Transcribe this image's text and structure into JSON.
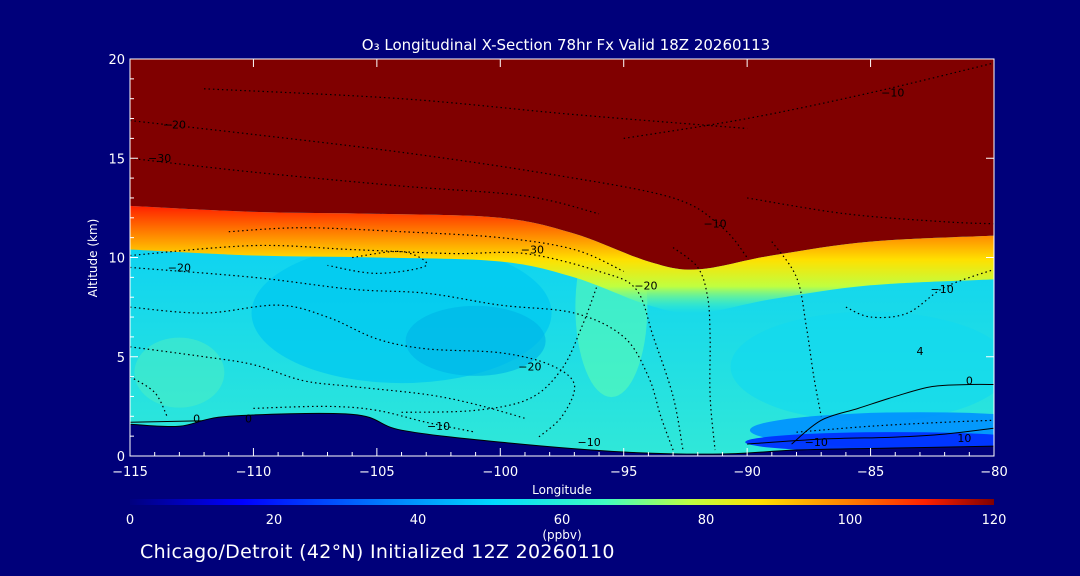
{
  "chart_data": {
    "type": "heatmap",
    "title": "O₃ Longitudinal X-Section 78hr  Fx Valid 18Z 20260113",
    "xlabel": "Longitude",
    "ylabel": "Altitude (km)",
    "xlim": [
      -115,
      -80
    ],
    "ylim": [
      0,
      20
    ],
    "x_ticks": [
      -115,
      -110,
      -105,
      -100,
      -95,
      -90,
      -85,
      -80
    ],
    "x_tick_labels": [
      "−115",
      "−110",
      "−105",
      "−100",
      "−95",
      "−90",
      "−85",
      "−80"
    ],
    "y_ticks": [
      0,
      5,
      10,
      15,
      20
    ],
    "y_tick_labels": [
      "0",
      "5",
      "10",
      "15",
      "20"
    ],
    "colorbar": {
      "label": "(ppbv)",
      "range": [
        0,
        120
      ],
      "ticks": [
        0,
        20,
        40,
        60,
        80,
        100,
        120
      ],
      "tick_labels": [
        "0",
        "20",
        "40",
        "60",
        "80",
        "100",
        "120"
      ],
      "colors": [
        "#00007f",
        "#0000ff",
        "#0080ff",
        "#00d8ff",
        "#40ffc0",
        "#c0ff40",
        "#ffe000",
        "#ff8000",
        "#ff2000",
        "#7f0000"
      ]
    },
    "stratosphere_boundary_km": [
      {
        "lon": -115,
        "alt": 12.6
      },
      {
        "lon": -110,
        "alt": 12.3
      },
      {
        "lon": -105,
        "alt": 12.2
      },
      {
        "lon": -100,
        "alt": 12.0
      },
      {
        "lon": -97,
        "alt": 11.2
      },
      {
        "lon": -94,
        "alt": 9.8
      },
      {
        "lon": -92,
        "alt": 9.4
      },
      {
        "lon": -89,
        "alt": 10.1
      },
      {
        "lon": -85,
        "alt": 10.8
      },
      {
        "lon": -80,
        "alt": 11.1
      }
    ],
    "terrain_km": [
      {
        "lon": -115,
        "alt": 1.6
      },
      {
        "lon": -113,
        "alt": 1.5
      },
      {
        "lon": -111,
        "alt": 2.0
      },
      {
        "lon": -106,
        "alt": 2.1
      },
      {
        "lon": -104,
        "alt": 1.3
      },
      {
        "lon": -100,
        "alt": 0.7
      },
      {
        "lon": -95,
        "alt": 0.2
      },
      {
        "lon": -91,
        "alt": 0.1
      },
      {
        "lon": -88,
        "alt": 0.3
      },
      {
        "lon": -84,
        "alt": 0.4
      },
      {
        "lon": -80,
        "alt": 0.5
      }
    ],
    "contour_labels": [
      {
        "text": "−20",
        "lon": -113.2,
        "alt": 16.5
      },
      {
        "text": "−30",
        "lon": -113.8,
        "alt": 14.8
      },
      {
        "text": "−10",
        "lon": -84.1,
        "alt": 18.1
      },
      {
        "text": "−10",
        "lon": -91.3,
        "alt": 11.5
      },
      {
        "text": "−30",
        "lon": -98.7,
        "alt": 10.2
      },
      {
        "text": "−20",
        "lon": -94.1,
        "alt": 8.4
      },
      {
        "text": "−20",
        "lon": -113.0,
        "alt": 9.3
      },
      {
        "text": "−10",
        "lon": -82.1,
        "alt": 8.2
      },
      {
        "text": "−20",
        "lon": -98.8,
        "alt": 4.3
      },
      {
        "text": "−10",
        "lon": -102.5,
        "alt": 1.3
      },
      {
        "text": "−10",
        "lon": -96.4,
        "alt": 0.5
      },
      {
        "text": "−10",
        "lon": -87.2,
        "alt": 0.5
      },
      {
        "text": "0",
        "lon": -81.0,
        "alt": 3.6
      },
      {
        "text": "10",
        "lon": -81.2,
        "alt": 0.7
      },
      {
        "text": "0",
        "lon": -110.2,
        "alt": 1.7
      },
      {
        "text": "0",
        "lon": -112.3,
        "alt": 1.7
      },
      {
        "text": "4",
        "lon": -83.0,
        "alt": 5.1
      }
    ]
  },
  "footer": {
    "caption": "Chicago/Detroit (42°N) Initialized 12Z 20260110"
  }
}
